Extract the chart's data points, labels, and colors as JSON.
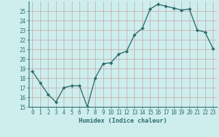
{
  "x": [
    0,
    1,
    2,
    3,
    4,
    5,
    6,
    7,
    8,
    9,
    10,
    11,
    12,
    13,
    14,
    15,
    16,
    17,
    18,
    19,
    20,
    21,
    22,
    23
  ],
  "y": [
    18.7,
    17.5,
    16.3,
    15.5,
    17.0,
    17.2,
    17.2,
    15.0,
    18.0,
    19.5,
    19.6,
    20.5,
    20.8,
    22.5,
    23.2,
    25.2,
    25.7,
    25.5,
    25.3,
    25.1,
    25.2,
    23.0,
    22.8,
    21.1
  ],
  "line_color": "#2d6b6b",
  "marker": "D",
  "markersize": 2.2,
  "linewidth": 1.0,
  "xlabel": "Humidex (Indice chaleur)",
  "xlim": [
    -0.5,
    23.5
  ],
  "ylim": [
    15,
    26
  ],
  "yticks": [
    15,
    16,
    17,
    18,
    19,
    20,
    21,
    22,
    23,
    24,
    25
  ],
  "xticks": [
    0,
    1,
    2,
    3,
    4,
    5,
    6,
    7,
    8,
    9,
    10,
    11,
    12,
    13,
    14,
    15,
    16,
    17,
    18,
    19,
    20,
    21,
    22,
    23
  ],
  "grid_color": "#c8a0a0",
  "bg_color": "#cdeeed",
  "label_fontsize": 6.5,
  "tick_fontsize": 5.5
}
